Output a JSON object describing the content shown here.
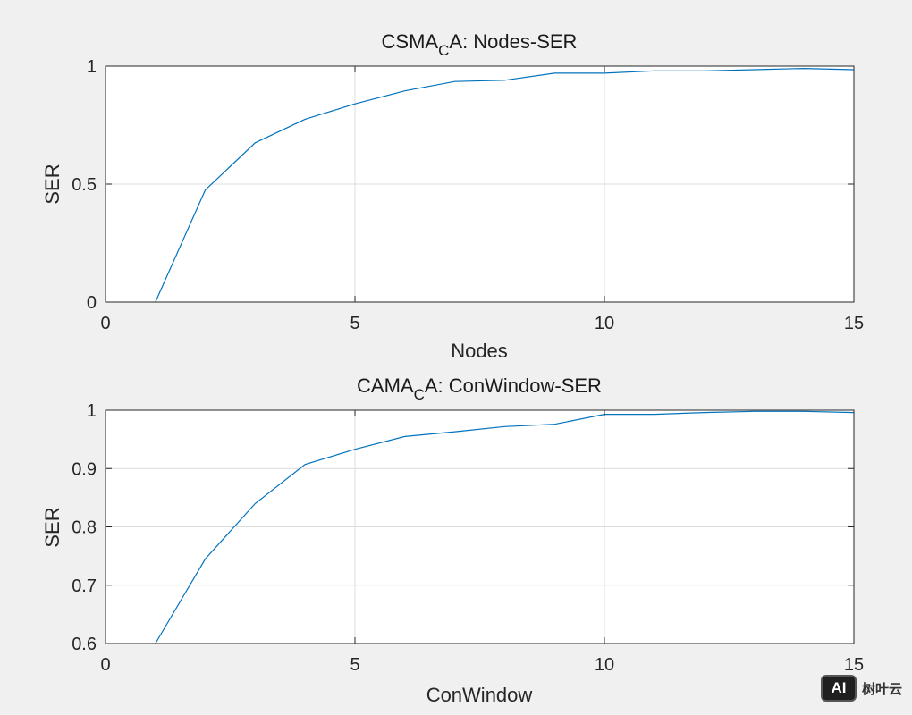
{
  "chart_data": [
    {
      "type": "line",
      "title_parts": [
        "CSMA",
        "C",
        "A: Nodes-SER"
      ],
      "xlabel": "Nodes",
      "ylabel": "SER",
      "xlim": [
        0,
        15
      ],
      "ylim": [
        0,
        1
      ],
      "xticks": [
        0,
        5,
        10,
        15
      ],
      "yticks": [
        0,
        0.5,
        1
      ],
      "xtick_labels": [
        "0",
        "5",
        "10",
        "15"
      ],
      "ytick_labels": [
        "0",
        "0.5",
        "1"
      ],
      "grid": true,
      "series": [
        {
          "name": "SER",
          "color": "#0072bd",
          "x": [
            1,
            2,
            3,
            4,
            5,
            6,
            7,
            8,
            9,
            10,
            11,
            12,
            13,
            14,
            15
          ],
          "y": [
            0,
            0.475,
            0.675,
            0.775,
            0.84,
            0.895,
            0.935,
            0.94,
            0.97,
            0.97,
            0.98,
            0.98,
            0.985,
            0.99,
            0.985
          ]
        }
      ]
    },
    {
      "type": "line",
      "title_parts": [
        "CAMA",
        "C",
        "A: ConWindow-SER"
      ],
      "xlabel": "ConWindow",
      "ylabel": "SER",
      "xlim": [
        0,
        15
      ],
      "ylim": [
        0.6,
        1
      ],
      "xticks": [
        0,
        5,
        10,
        15
      ],
      "yticks": [
        0.6,
        0.7,
        0.8,
        0.9,
        1
      ],
      "xtick_labels": [
        "0",
        "5",
        "10",
        "15"
      ],
      "ytick_labels": [
        "0.6",
        "0.7",
        "0.8",
        "0.9",
        "1"
      ],
      "grid": true,
      "series": [
        {
          "name": "SER",
          "color": "#0072bd",
          "x": [
            1,
            2,
            3,
            4,
            5,
            6,
            7,
            8,
            9,
            10,
            11,
            12,
            13,
            14,
            15
          ],
          "y": [
            0.6,
            0.745,
            0.84,
            0.907,
            0.933,
            0.955,
            0.963,
            0.972,
            0.976,
            0.993,
            0.993,
            0.996,
            0.998,
            0.998,
            0.996
          ]
        }
      ]
    }
  ],
  "watermark": {
    "logo_text": "AI",
    "brand_text": "树叶云"
  }
}
